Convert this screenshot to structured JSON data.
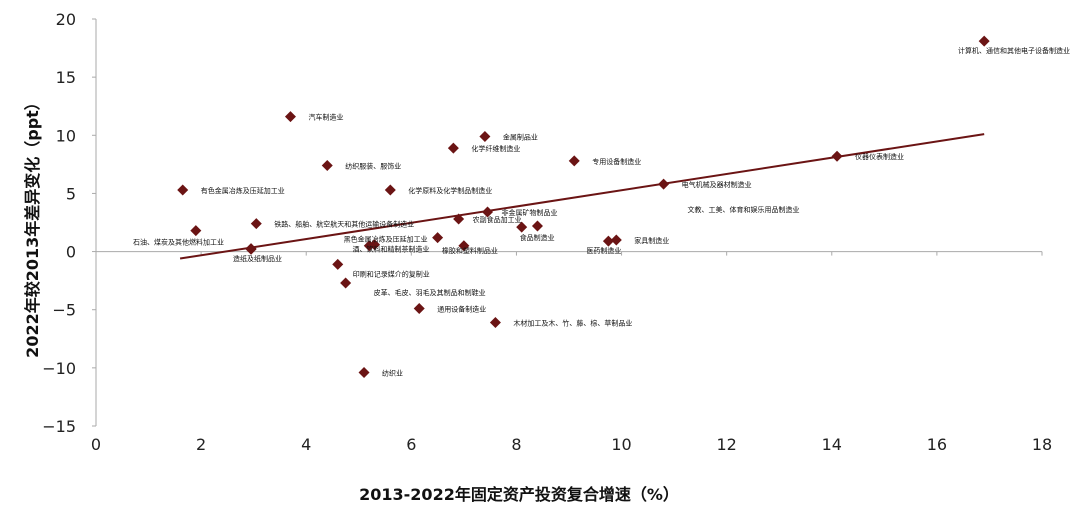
{
  "chart_data": {
    "type": "scatter",
    "xlabel": "2013-2022年固定资产投资复合增速（%）",
    "ylabel": "2022年较2013年差异变化（ppt）",
    "xlim": [
      0,
      18
    ],
    "ylim": [
      -15,
      20
    ],
    "x_ticks": [
      "0",
      "2",
      "4",
      "6",
      "8",
      "10",
      "12",
      "14",
      "16",
      "18"
    ],
    "y_ticks": [
      "20",
      "15",
      "10",
      "5",
      "0",
      "−5",
      "−10",
      "−15"
    ],
    "grid": false,
    "legend": "none",
    "colors": {
      "marker": "#6b1414",
      "trendline": "#6b1414",
      "axis": "#aaaaaa"
    },
    "points": [
      {
        "label": "计算机、通信和其他电子设备制造业",
        "x": 16.9,
        "y": 18.1
      },
      {
        "label": "汽车制造业",
        "x": 3.7,
        "y": 11.6
      },
      {
        "label": "金属制品业",
        "x": 7.4,
        "y": 9.9
      },
      {
        "label": "化学纤维制造业",
        "x": 6.8,
        "y": 8.9
      },
      {
        "label": "专用设备制造业",
        "x": 9.1,
        "y": 7.8
      },
      {
        "label": "仪器仪表制造业",
        "x": 14.1,
        "y": 8.2
      },
      {
        "label": "纺织服装、服饰业",
        "x": 4.4,
        "y": 7.4
      },
      {
        "label": "电气机械及器材制造业",
        "x": 10.8,
        "y": 5.8
      },
      {
        "label": "有色金属冶炼及压延加工业",
        "x": 1.65,
        "y": 5.3
      },
      {
        "label": "化学原料及化学制品制造业",
        "x": 5.6,
        "y": 5.3
      },
      {
        "label": "非金属矿物制品业",
        "x": 7.45,
        "y": 3.4
      },
      {
        "label": "农副食品加工业",
        "x": 6.9,
        "y": 2.8
      },
      {
        "label": "铁路、船舶、航空航天和其他运输设备制造业",
        "x": 3.05,
        "y": 2.4
      },
      {
        "label": "食品制造业",
        "x": 8.1,
        "y": 2.1
      },
      {
        "label": "文教、工美、体育和娱乐用品制造业",
        "x": 8.4,
        "y": 2.2
      },
      {
        "label": "",
        "x": 1.9,
        "y": 1.8
      },
      {
        "label": "黑色金属冶炼及压延加工业",
        "x": 6.5,
        "y": 1.2
      },
      {
        "label": "家具制造业",
        "x": 9.9,
        "y": 1.0
      },
      {
        "label": "医药制造业",
        "x": 9.75,
        "y": 0.9
      },
      {
        "label": "酒、饮料和精制茶制造业",
        "x": 5.3,
        "y": 0.6
      },
      {
        "label": "",
        "x": 5.2,
        "y": 0.5
      },
      {
        "label": "石油、煤炭及其他燃料加工业",
        "x": 2.95,
        "y": 0.25
      },
      {
        "label": "造纸及纸制品业",
        "x": 2.95,
        "y": 0.2
      },
      {
        "label": "印刷和记录媒介的复制业",
        "x": 4.6,
        "y": -1.1
      },
      {
        "label": "皮革、毛皮、羽毛及其制品和制鞋业",
        "x": 4.75,
        "y": -2.7
      },
      {
        "label": "通用设备制造业",
        "x": 6.15,
        "y": -4.9
      },
      {
        "label": "木材加工及木、竹、藤、棕、草制品业",
        "x": 7.6,
        "y": -6.1
      },
      {
        "label": "纺织业",
        "x": 5.1,
        "y": -10.4
      },
      {
        "label": "橡胶和塑料制品业",
        "x": 7.0,
        "y": 0.5
      }
    ],
    "trendline": {
      "x": [
        1.6,
        16.9
      ],
      "y": [
        -0.6,
        10.1
      ]
    }
  }
}
